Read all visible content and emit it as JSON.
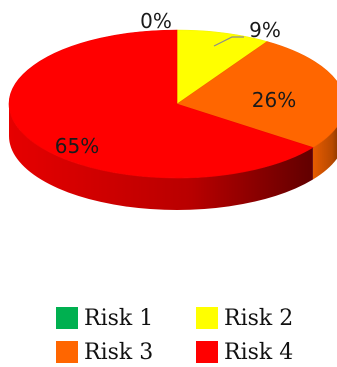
{
  "chart_data": {
    "type": "pie",
    "categories": [
      "Risk 1",
      "Risk 2",
      "Risk 3",
      "Risk 4"
    ],
    "values": [
      0,
      9,
      26,
      65
    ],
    "data_labels": [
      "0%",
      "9%",
      "26%",
      "65%"
    ],
    "colors": [
      "#00b050",
      "#ffff00",
      "#ff6600",
      "#ff0000"
    ],
    "legend": "bottom",
    "style": "3d"
  }
}
